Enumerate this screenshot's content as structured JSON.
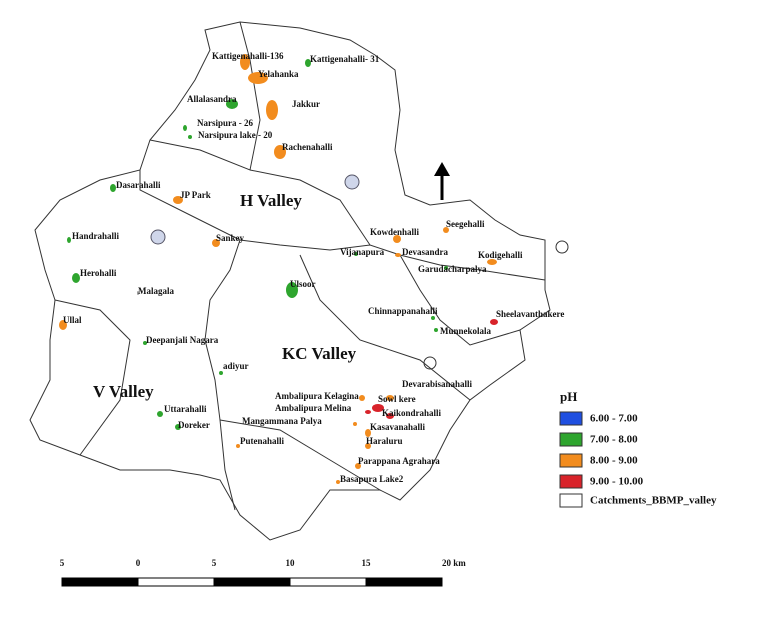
{
  "valleys": [
    "H Valley",
    "KC Valley",
    "V Valley"
  ],
  "lakes": [
    {
      "label": "Kattigenahalli-136",
      "color": "#f28c1e"
    },
    {
      "label": "Kattigenahalli- 31",
      "color": "#2ea52e"
    },
    {
      "label": "Yelahanka",
      "color": "#f28c1e"
    },
    {
      "label": "Allalasandra",
      "color": "#2ea52e"
    },
    {
      "label": "Jakkur",
      "color": "#f28c1e"
    },
    {
      "label": "Narsipura - 26",
      "color": "#2ea52e"
    },
    {
      "label": "Narsipura lake - 20",
      "color": "#2ea52e"
    },
    {
      "label": "Rachenahalli",
      "color": "#f28c1e"
    },
    {
      "label": "Dasarahalli",
      "color": "#2ea52e"
    },
    {
      "label": "JP Park",
      "color": "#f28c1e"
    },
    {
      "label": "Sankey",
      "color": "#f28c1e"
    },
    {
      "label": "Handrahalli",
      "color": "#2ea52e"
    },
    {
      "label": "Herohalli",
      "color": "#2ea52e"
    },
    {
      "label": "Malagala",
      "color": "#999999"
    },
    {
      "label": "Ullal",
      "color": "#f28c1e"
    },
    {
      "label": "Ulsoor",
      "color": "#2ea52e"
    },
    {
      "label": "Kowdenhalli",
      "color": "#f28c1e"
    },
    {
      "label": "Vijanapura",
      "color": "#2ea52e"
    },
    {
      "label": "Devasandra",
      "color": "#f28c1e"
    },
    {
      "label": "Seegehalli",
      "color": "#f28c1e"
    },
    {
      "label": "Kodigehalli",
      "color": "#f28c1e"
    },
    {
      "label": "Garudacharpalya",
      "color": "#2ea52e"
    },
    {
      "label": "Chinnappanahalli",
      "color": "#2ea52e"
    },
    {
      "label": "Sheelavanthakere",
      "color": "#d8232a"
    },
    {
      "label": "Munnekolala",
      "color": "#2ea52e"
    },
    {
      "label": "Deepanjali Nagara",
      "color": "#2ea52e"
    },
    {
      "label": "adiyur",
      "color": "#2ea52e"
    },
    {
      "label": "Devarabisanahalli",
      "color": "#f28c1e"
    },
    {
      "label": "Ambalipura Kelagina",
      "color": "#f28c1e"
    },
    {
      "label": "Sowl kere",
      "color": "#d8232a"
    },
    {
      "label": "Ambalipura Melina",
      "color": "#d8232a"
    },
    {
      "label": "Kaikondrahalli",
      "color": "#d8232a"
    },
    {
      "label": "Mangammana Palya",
      "color": "#f28c1e"
    },
    {
      "label": "Kasavanahalli",
      "color": "#f28c1e"
    },
    {
      "label": "Uttarahalli",
      "color": "#2ea52e"
    },
    {
      "label": "Doreker",
      "color": "#2ea52e"
    },
    {
      "label": "Haraluru",
      "color": "#f28c1e"
    },
    {
      "label": "Putenahalli",
      "color": "#f28c1e"
    },
    {
      "label": "Parappana Agrahara",
      "color": "#f28c1e"
    },
    {
      "label": "Basapura Lake2",
      "color": "#f28c1e"
    }
  ],
  "legend": {
    "title": "pH",
    "items": [
      {
        "label": "6.00 - 7.00",
        "color": "#1f4fe0"
      },
      {
        "label": "7.00 - 8.00",
        "color": "#2ea52e"
      },
      {
        "label": "8.00 - 9.00",
        "color": "#f28c1e"
      },
      {
        "label": "9.00 - 10.00",
        "color": "#d8232a"
      }
    ],
    "boundary": "Catchments_BBMP_valley"
  },
  "scale": {
    "labels": [
      "5",
      "0",
      "5",
      "10",
      "15",
      "20 km"
    ]
  }
}
